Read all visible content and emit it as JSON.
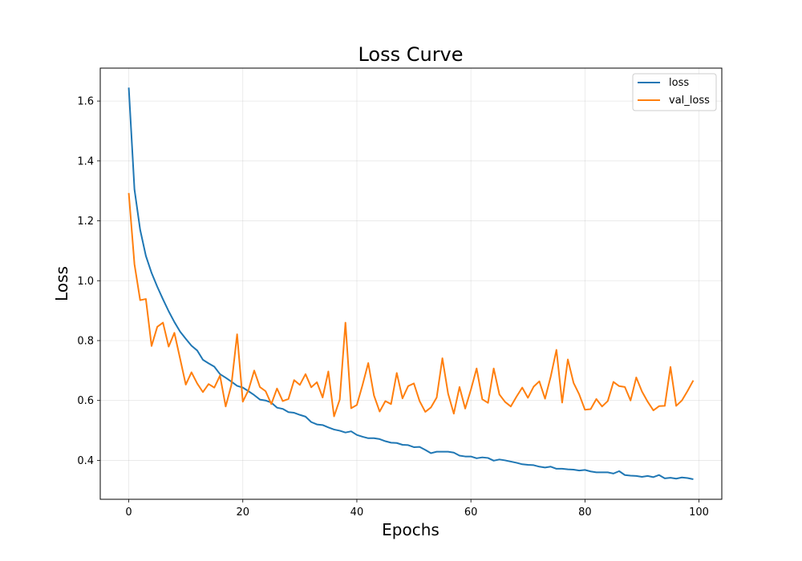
{
  "chart_data": {
    "type": "line",
    "title": "Loss Curve",
    "xlabel": "Epochs",
    "ylabel": "Loss",
    "xlim": [
      -5,
      104
    ],
    "ylim": [
      0.27,
      1.71
    ],
    "xticks": [
      0,
      20,
      40,
      60,
      80,
      100
    ],
    "yticks": [
      0.4,
      0.6,
      0.8,
      1.0,
      1.2,
      1.4,
      1.6
    ],
    "ytick_labels": [
      "0.4",
      "0.6",
      "0.8",
      "1.0",
      "1.2",
      "1.4",
      "1.6"
    ],
    "grid": true,
    "legend_position": "top-right",
    "series": [
      {
        "name": "loss",
        "color": "#1f77b4",
        "values": [
          1.645,
          1.305,
          1.17,
          1.083,
          1.026,
          0.98,
          0.938,
          0.898,
          0.862,
          0.83,
          0.806,
          0.783,
          0.767,
          0.736,
          0.724,
          0.713,
          0.688,
          0.676,
          0.663,
          0.649,
          0.643,
          0.631,
          0.618,
          0.603,
          0.6,
          0.593,
          0.576,
          0.572,
          0.561,
          0.559,
          0.552,
          0.546,
          0.528,
          0.52,
          0.518,
          0.51,
          0.503,
          0.499,
          0.493,
          0.497,
          0.485,
          0.479,
          0.474,
          0.474,
          0.471,
          0.464,
          0.459,
          0.458,
          0.452,
          0.451,
          0.444,
          0.445,
          0.435,
          0.424,
          0.429,
          0.429,
          0.429,
          0.426,
          0.416,
          0.413,
          0.413,
          0.407,
          0.41,
          0.408,
          0.399,
          0.403,
          0.4,
          0.396,
          0.392,
          0.387,
          0.385,
          0.384,
          0.379,
          0.376,
          0.379,
          0.372,
          0.372,
          0.37,
          0.369,
          0.366,
          0.368,
          0.363,
          0.36,
          0.36,
          0.36,
          0.356,
          0.364,
          0.351,
          0.349,
          0.348,
          0.345,
          0.348,
          0.344,
          0.351,
          0.34,
          0.342,
          0.339,
          0.343,
          0.341,
          0.337
        ]
      },
      {
        "name": "val_loss",
        "color": "#ff7f0e",
        "values": [
          1.293,
          1.055,
          0.935,
          0.939,
          0.782,
          0.846,
          0.86,
          0.78,
          0.826,
          0.74,
          0.653,
          0.694,
          0.657,
          0.628,
          0.655,
          0.643,
          0.683,
          0.58,
          0.652,
          0.821,
          0.596,
          0.635,
          0.7,
          0.645,
          0.631,
          0.588,
          0.64,
          0.598,
          0.605,
          0.668,
          0.652,
          0.688,
          0.644,
          0.661,
          0.61,
          0.697,
          0.547,
          0.603,
          0.86,
          0.574,
          0.585,
          0.652,
          0.725,
          0.617,
          0.563,
          0.598,
          0.588,
          0.692,
          0.607,
          0.648,
          0.657,
          0.598,
          0.562,
          0.577,
          0.61,
          0.741,
          0.623,
          0.556,
          0.645,
          0.573,
          0.636,
          0.707,
          0.604,
          0.592,
          0.707,
          0.62,
          0.595,
          0.58,
          0.613,
          0.643,
          0.609,
          0.646,
          0.664,
          0.606,
          0.68,
          0.769,
          0.593,
          0.737,
          0.659,
          0.62,
          0.569,
          0.571,
          0.605,
          0.58,
          0.598,
          0.662,
          0.648,
          0.645,
          0.6,
          0.677,
          0.63,
          0.596,
          0.567,
          0.581,
          0.582,
          0.712,
          0.582,
          0.6,
          0.632,
          0.667
        ]
      }
    ]
  }
}
